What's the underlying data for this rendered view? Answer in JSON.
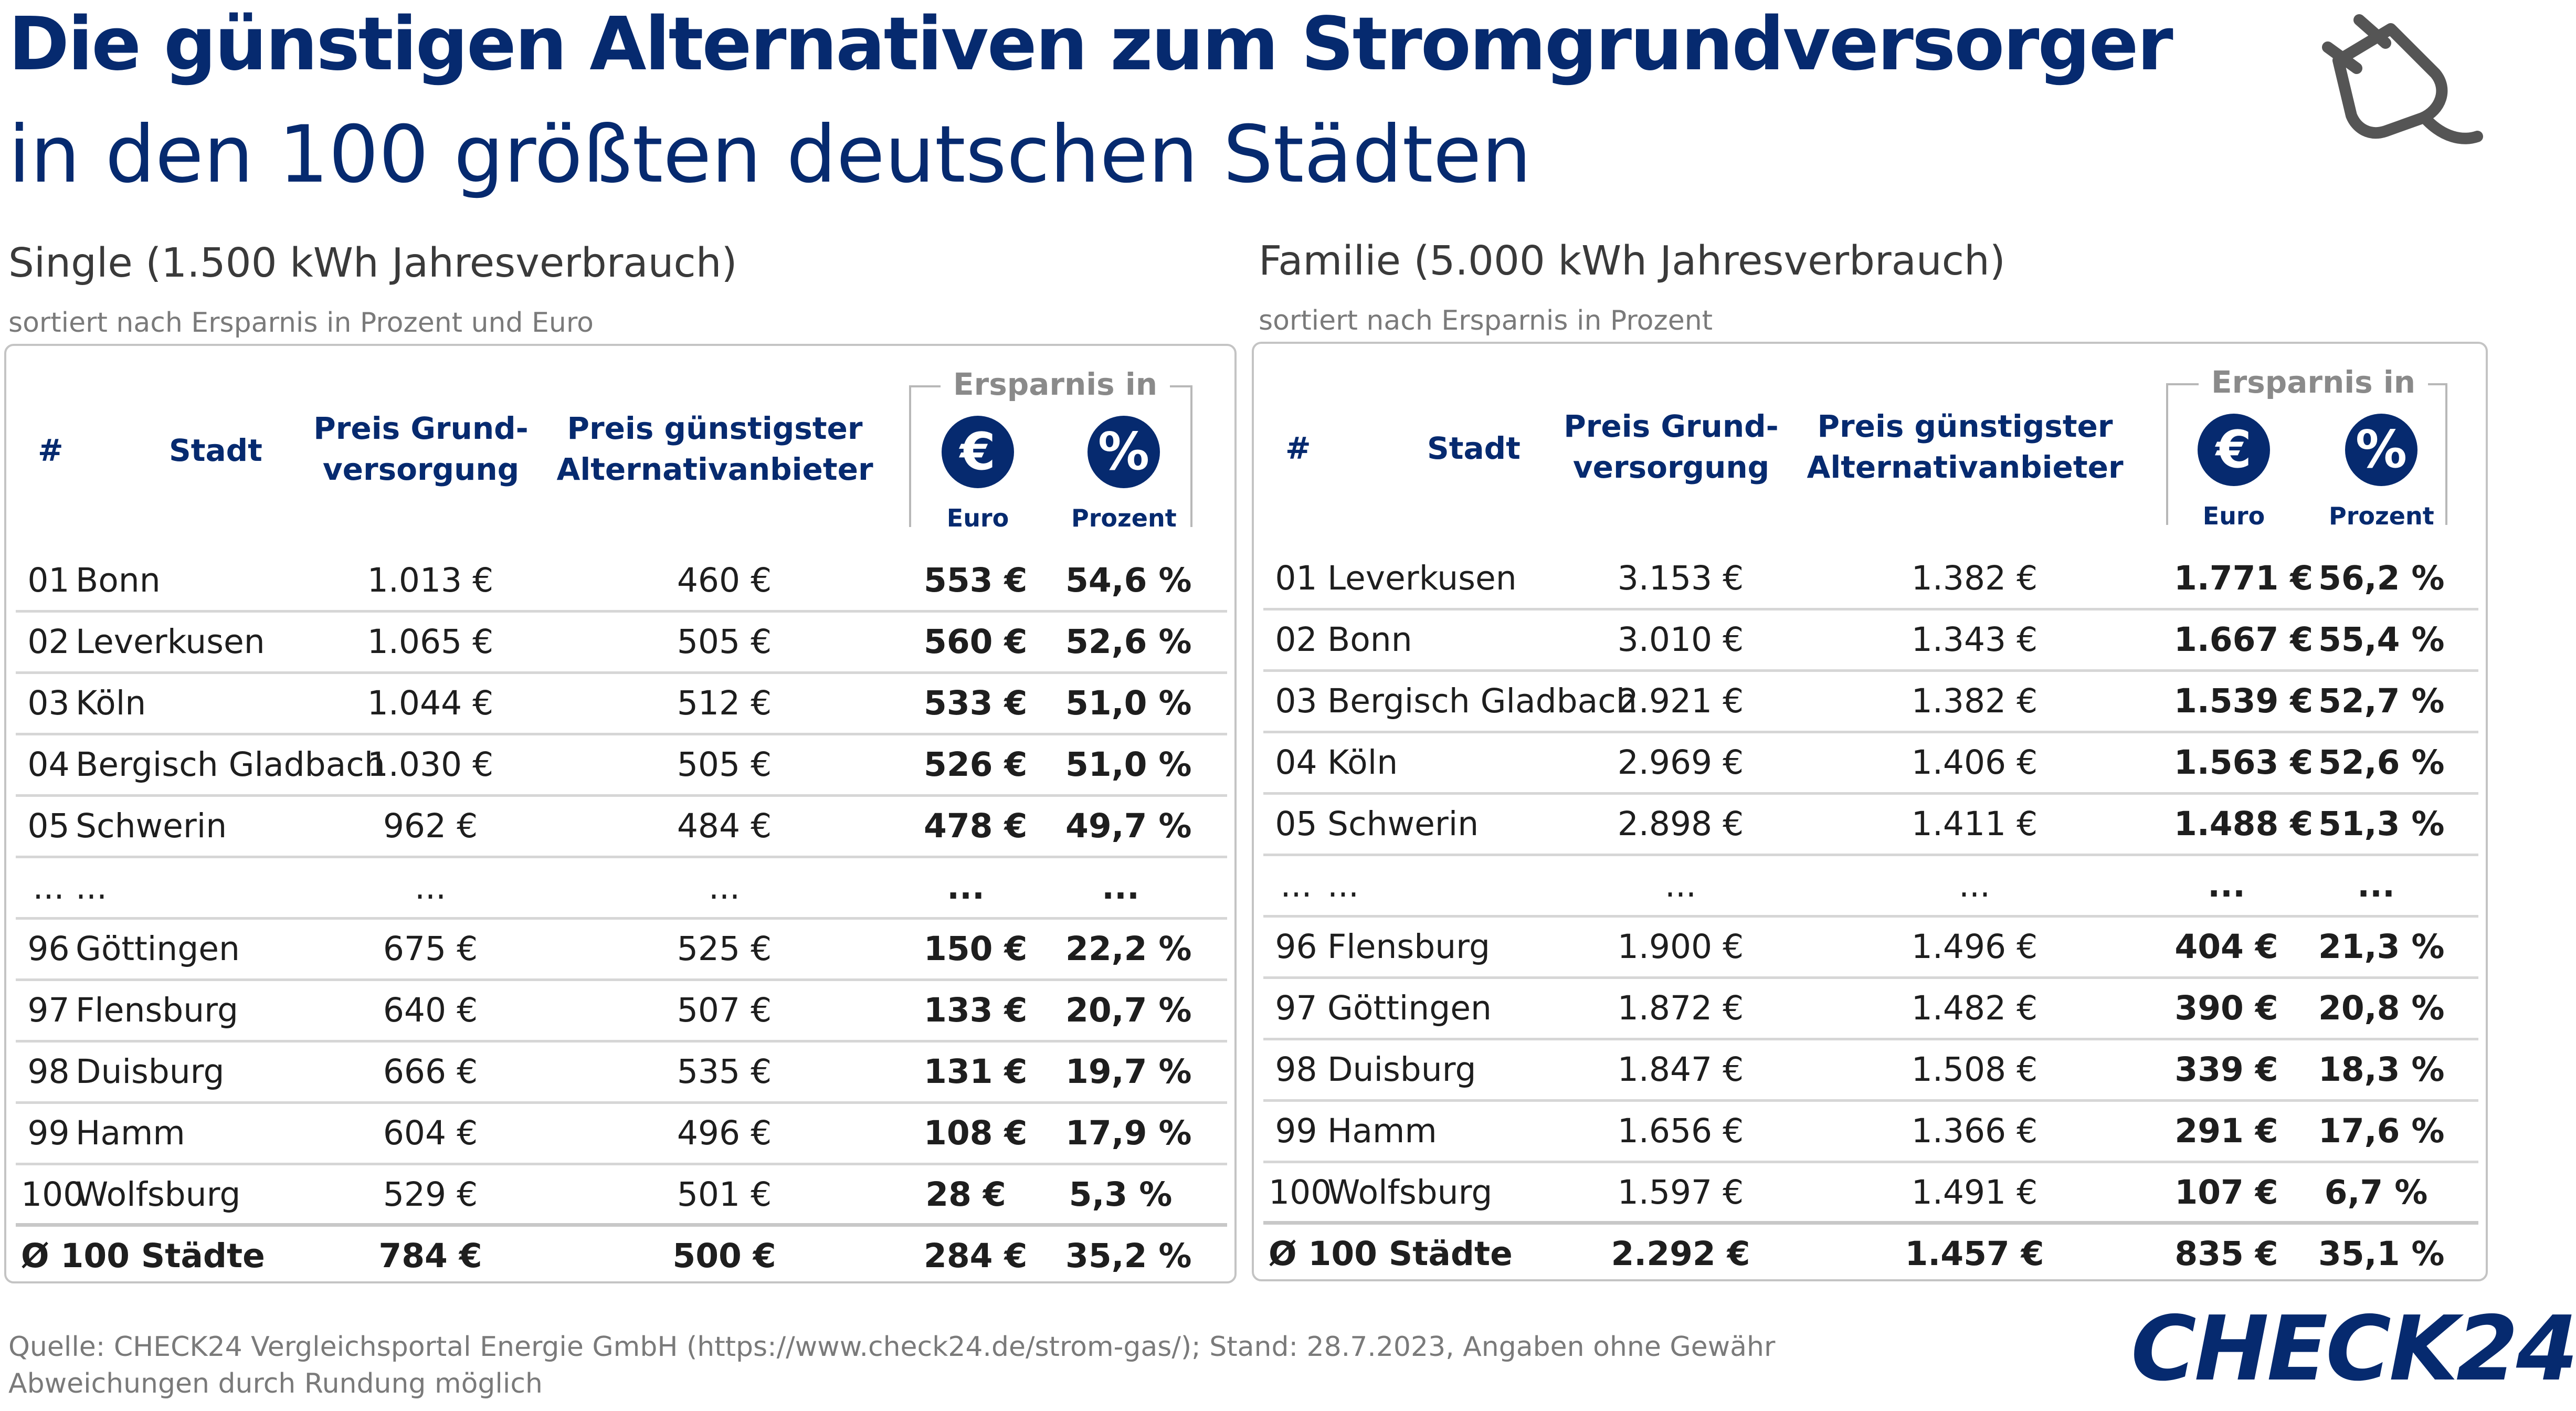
{
  "title": "Die günstigen Alternativen zum Stromgrundversorger",
  "subtitle": "in den 100 größten deutschen Städten",
  "headers": {
    "num": "#",
    "city": "Stadt",
    "base_line1": "Preis Grund-",
    "base_line2": "versorgung",
    "alt_line1": "Preis günstigster",
    "alt_line2": "Alternativanbieter",
    "savings": "Ersparnis in",
    "euro_symbol": "€",
    "percent_symbol": "%",
    "euro_label": "Euro",
    "percent_label": "Prozent"
  },
  "single": {
    "title": "Single (1.500 kWh Jahresverbrauch)",
    "sort_note": "sortiert nach Ersparnis in Prozent und Euro",
    "rows": [
      {
        "rank": "01",
        "city": "Bonn",
        "base": "1.013 €",
        "alt": "460 €",
        "save_eur": "553 €",
        "save_pct": "54,6 %"
      },
      {
        "rank": "02",
        "city": "Leverkusen",
        "base": "1.065 €",
        "alt": "505 €",
        "save_eur": "560 €",
        "save_pct": "52,6 %"
      },
      {
        "rank": "03",
        "city": "Köln",
        "base": "1.044 €",
        "alt": "512 €",
        "save_eur": "533 €",
        "save_pct": "51,0 %"
      },
      {
        "rank": "04",
        "city": "Bergisch Gladbach",
        "base": "1.030 €",
        "alt": "505 €",
        "save_eur": "526 €",
        "save_pct": "51,0 %"
      },
      {
        "rank": "05",
        "city": "Schwerin",
        "base": "962 €",
        "alt": "484 €",
        "save_eur": "478 €",
        "save_pct": "49,7 %"
      },
      {
        "rank": "...",
        "city": "...",
        "base": "...",
        "alt": "...",
        "save_eur": "...",
        "save_pct": "..."
      },
      {
        "rank": "96",
        "city": "Göttingen",
        "base": "675 €",
        "alt": "525 €",
        "save_eur": "150 €",
        "save_pct": "22,2 %"
      },
      {
        "rank": "97",
        "city": "Flensburg",
        "base": "640 €",
        "alt": "507 €",
        "save_eur": "133 €",
        "save_pct": "20,7 %"
      },
      {
        "rank": "98",
        "city": "Duisburg",
        "base": "666 €",
        "alt": "535 €",
        "save_eur": "131 €",
        "save_pct": "19,7 %"
      },
      {
        "rank": "99",
        "city": "Hamm",
        "base": "604 €",
        "alt": "496 €",
        "save_eur": "108 €",
        "save_pct": "17,9 %"
      },
      {
        "rank": "100",
        "city": "Wolfsburg",
        "base": "529 €",
        "alt": "501 €",
        "save_eur": "28 €",
        "save_pct": "5,3 %"
      }
    ],
    "average": {
      "label": "Ø 100 Städte",
      "base": "784 €",
      "alt": "500 €",
      "save_eur": "284 €",
      "save_pct": "35,2 %"
    }
  },
  "family": {
    "title": "Familie (5.000 kWh Jahresverbrauch)",
    "sort_note": "sortiert nach Ersparnis in Prozent",
    "rows": [
      {
        "rank": "01",
        "city": "Leverkusen",
        "base": "3.153 €",
        "alt": "1.382 €",
        "save_eur": "1.771 €",
        "save_pct": "56,2 %"
      },
      {
        "rank": "02",
        "city": "Bonn",
        "base": "3.010 €",
        "alt": "1.343 €",
        "save_eur": "1.667 €",
        "save_pct": "55,4 %"
      },
      {
        "rank": "03",
        "city": "Bergisch Gladbach",
        "base": "2.921 €",
        "alt": "1.382 €",
        "save_eur": "1.539 €",
        "save_pct": "52,7 %"
      },
      {
        "rank": "04",
        "city": "Köln",
        "base": "2.969 €",
        "alt": "1.406 €",
        "save_eur": "1.563 €",
        "save_pct": "52,6 %"
      },
      {
        "rank": "05",
        "city": "Schwerin",
        "base": "2.898 €",
        "alt": "1.411 €",
        "save_eur": "1.488 €",
        "save_pct": "51,3 %"
      },
      {
        "rank": "...",
        "city": "...",
        "base": "...",
        "alt": "...",
        "save_eur": "...",
        "save_pct": "..."
      },
      {
        "rank": "96",
        "city": "Flensburg",
        "base": "1.900 €",
        "alt": "1.496 €",
        "save_eur": "404 €",
        "save_pct": "21,3 %"
      },
      {
        "rank": "97",
        "city": "Göttingen",
        "base": "1.872 €",
        "alt": "1.482 €",
        "save_eur": "390 €",
        "save_pct": "20,8 %"
      },
      {
        "rank": "98",
        "city": "Duisburg",
        "base": "1.847 €",
        "alt": "1.508 €",
        "save_eur": "339 €",
        "save_pct": "18,3 %"
      },
      {
        "rank": "99",
        "city": "Hamm",
        "base": "1.656 €",
        "alt": "1.366 €",
        "save_eur": "291 €",
        "save_pct": "17,6 %"
      },
      {
        "rank": "100",
        "city": "Wolfsburg",
        "base": "1.597 €",
        "alt": "1.491 €",
        "save_eur": "107 €",
        "save_pct": "6,7 %"
      }
    ],
    "average": {
      "label": "Ø 100 Städte",
      "base": "2.292 €",
      "alt": "1.457 €",
      "save_eur": "835 €",
      "save_pct": "35,1 %"
    }
  },
  "footer": {
    "source": "Quelle: CHECK24 Vergleichsportal Energie GmbH (https://www.check24.de/strom-gas/); Stand: 28.7.2023, Angaben ohne Gewähr",
    "note": "Abweichungen durch Rundung möglich"
  },
  "logo": "CHECK24",
  "icons": {
    "header": "plug-icon"
  },
  "colors": {
    "brand": "#062a6f",
    "muted": "#7a7a7a",
    "border": "#c4c4c4"
  }
}
